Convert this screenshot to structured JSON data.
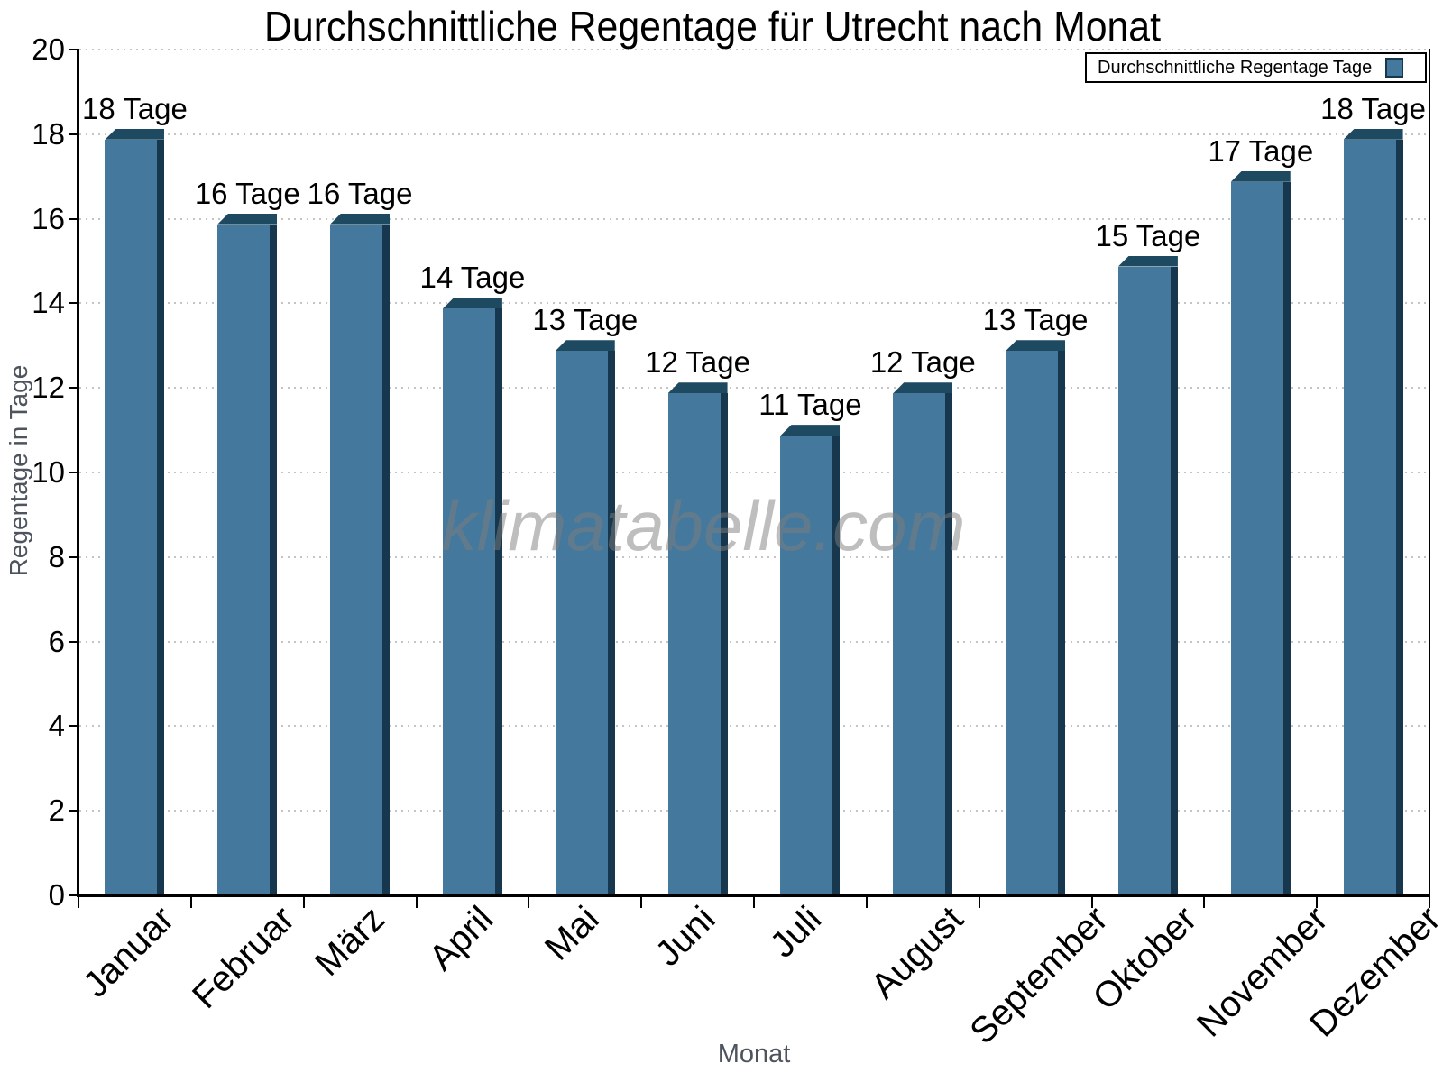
{
  "watermark": "klimatabelle.com",
  "legend": {
    "label": "Durchschnittliche Regentage Tage"
  },
  "chart_data": {
    "type": "bar",
    "title": "Durchschnittliche Regentage für Utrecht nach Monat",
    "categories": [
      "Januar",
      "Februar",
      "März",
      "April",
      "Mai",
      "Juni",
      "Juli",
      "August",
      "September",
      "Oktober",
      "November",
      "Dezember"
    ],
    "values": [
      18,
      16,
      16,
      14,
      13,
      12,
      11,
      12,
      13,
      15,
      17,
      18
    ],
    "bar_labels": [
      "18 Tage",
      "16 Tage",
      "16 Tage",
      "14 Tage",
      "13 Tage",
      "12 Tage",
      "11 Tage",
      "12 Tage",
      "13 Tage",
      "15 Tage",
      "17 Tage",
      "18 Tage"
    ],
    "xlabel": "Monat",
    "ylabel": "Regentage in Tage",
    "ylim": [
      0,
      20
    ],
    "ytick_step": 2,
    "grid": "horizontal-dotted",
    "legend_position": "top-right",
    "bar_color": "#44799D",
    "bar_edge_color": "#16374D",
    "bar_top_color": "#1D4A61",
    "series": [
      {
        "name": "Durchschnittliche Regentage Tage",
        "values": [
          18,
          16,
          16,
          14,
          13,
          12,
          11,
          12,
          13,
          15,
          17,
          18
        ]
      }
    ]
  }
}
